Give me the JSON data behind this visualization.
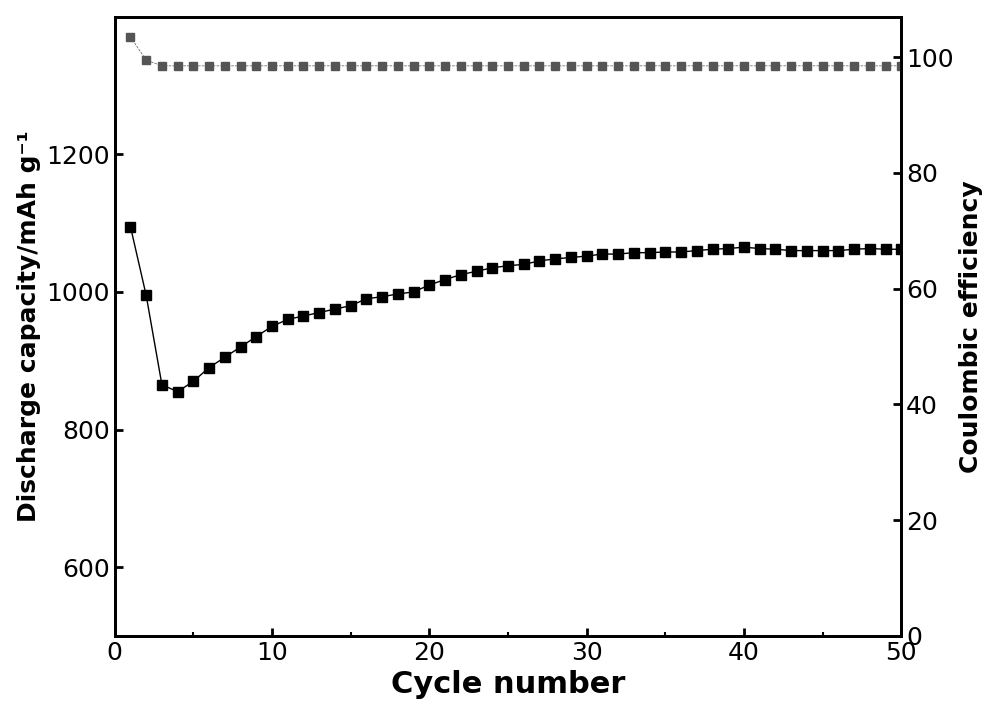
{
  "discharge_capacity": {
    "cycles": [
      1,
      2,
      3,
      4,
      5,
      6,
      7,
      8,
      9,
      10,
      11,
      12,
      13,
      14,
      15,
      16,
      17,
      18,
      19,
      20,
      21,
      22,
      23,
      24,
      25,
      26,
      27,
      28,
      29,
      30,
      31,
      32,
      33,
      34,
      35,
      36,
      37,
      38,
      39,
      40,
      41,
      42,
      43,
      44,
      45,
      46,
      47,
      48,
      49,
      50
    ],
    "values": [
      1095,
      995,
      865,
      855,
      870,
      890,
      905,
      920,
      935,
      950,
      960,
      965,
      970,
      975,
      980,
      990,
      993,
      997,
      1000,
      1010,
      1018,
      1025,
      1030,
      1035,
      1038,
      1040,
      1045,
      1048,
      1050,
      1052,
      1055,
      1055,
      1057,
      1057,
      1058,
      1058,
      1060,
      1062,
      1063,
      1065,
      1063,
      1062,
      1060,
      1060,
      1060,
      1060,
      1062,
      1063,
      1062,
      1062
    ]
  },
  "coulombic_efficiency": {
    "cycles": [
      1,
      2,
      3,
      4,
      5,
      6,
      7,
      8,
      9,
      10,
      11,
      12,
      13,
      14,
      15,
      16,
      17,
      18,
      19,
      20,
      21,
      22,
      23,
      24,
      25,
      26,
      27,
      28,
      29,
      30,
      31,
      32,
      33,
      34,
      35,
      36,
      37,
      38,
      39,
      40,
      41,
      42,
      43,
      44,
      45,
      46,
      47,
      48,
      49,
      50
    ],
    "values": [
      103.5,
      99.5,
      98.5,
      98.5,
      98.5,
      98.5,
      98.5,
      98.5,
      98.5,
      98.5,
      98.5,
      98.5,
      98.5,
      98.5,
      98.5,
      98.5,
      98.5,
      98.5,
      98.5,
      98.5,
      98.5,
      98.5,
      98.5,
      98.5,
      98.5,
      98.5,
      98.5,
      98.5,
      98.5,
      98.5,
      98.5,
      98.5,
      98.5,
      98.5,
      98.5,
      98.5,
      98.5,
      98.5,
      98.5,
      98.5,
      98.5,
      98.5,
      98.5,
      98.5,
      98.5,
      98.5,
      98.5,
      98.5,
      98.5,
      98.5
    ]
  },
  "discharge_color": "#000000",
  "coulombic_color": "#555555",
  "xlabel": "Cycle number",
  "ylabel_left": "Discharge capacity/mAh g⁻¹",
  "ylabel_right": "Coulombic efficiency",
  "xlim": [
    0,
    50
  ],
  "ylim_left": [
    500,
    1400
  ],
  "ylim_right": [
    0,
    107
  ],
  "yticks_left": [
    600,
    800,
    1000,
    1200
  ],
  "yticks_right": [
    0,
    20,
    40,
    60,
    80,
    100
  ],
  "xticks": [
    0,
    10,
    20,
    30,
    40,
    50
  ],
  "marker": "s",
  "markersize_dc": 7,
  "markersize_ce": 6,
  "linewidth_dc": 1.0,
  "linewidth_ce": 0.5,
  "background_color": "#ffffff",
  "spine_linewidth": 2.0,
  "tick_labelsize": 18,
  "xlabel_fontsize": 22,
  "ylabel_left_fontsize": 18,
  "ylabel_right_fontsize": 18
}
